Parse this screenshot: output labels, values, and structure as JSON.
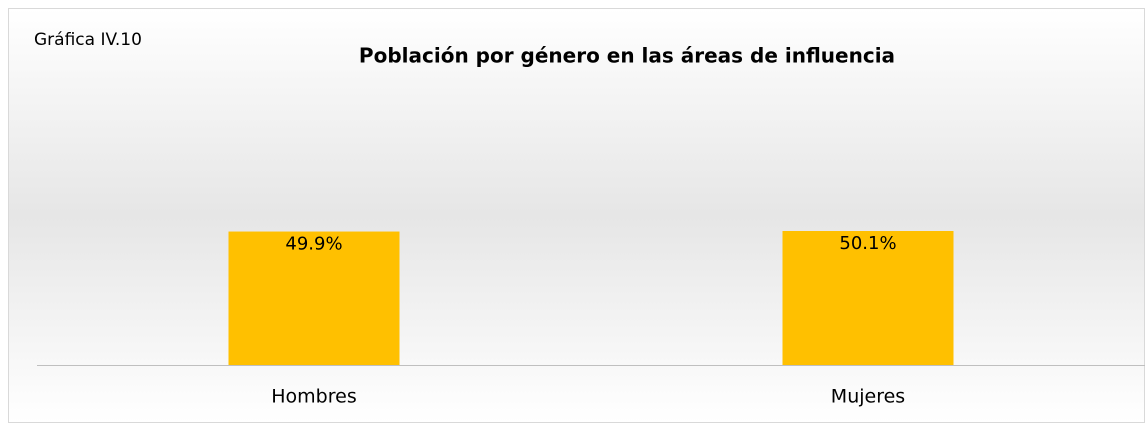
{
  "chart_data": {
    "type": "bar",
    "label": "Gráfica IV.10",
    "title": "Población por género en las áreas de influencia",
    "categories": [
      "Hombres",
      "Mujeres"
    ],
    "values": [
      49.9,
      50.1
    ],
    "value_labels": [
      "49.9%",
      "50.1%"
    ],
    "color": "#ffc000"
  }
}
